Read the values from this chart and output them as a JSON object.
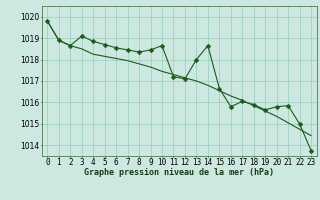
{
  "title": "Graphe pression niveau de la mer (hPa)",
  "background_color": "#cce8e0",
  "grid_color": "#99ccbb",
  "line_color": "#1a5c1a",
  "line1_y": [
    1019.8,
    1018.9,
    1018.65,
    1019.1,
    1018.85,
    1018.7,
    1018.55,
    1018.45,
    1018.35,
    1018.45,
    1018.65,
    1017.2,
    1017.1,
    1018.0,
    1018.65,
    1016.65,
    1015.8,
    1016.05,
    1015.9,
    1015.65,
    1015.8,
    1015.85,
    1015.0,
    1013.75
  ],
  "line2_y": [
    1019.8,
    1018.9,
    1018.65,
    1018.5,
    1018.25,
    1018.15,
    1018.05,
    1017.95,
    1017.8,
    1017.65,
    1017.45,
    1017.3,
    1017.15,
    1017.0,
    1016.8,
    1016.55,
    1016.3,
    1016.1,
    1015.85,
    1015.6,
    1015.35,
    1015.05,
    1014.75,
    1014.45
  ],
  "ylim": [
    1013.5,
    1020.5
  ],
  "yticks": [
    1014,
    1015,
    1016,
    1017,
    1018,
    1019,
    1020
  ],
  "xticks": [
    0,
    1,
    2,
    3,
    4,
    5,
    6,
    7,
    8,
    9,
    10,
    11,
    12,
    13,
    14,
    15,
    16,
    17,
    18,
    19,
    20,
    21,
    22,
    23
  ],
  "marker": "D",
  "marker_size": 2.5,
  "linewidth": 0.8,
  "tick_fontsize": 5.5,
  "label_fontsize": 6.0
}
